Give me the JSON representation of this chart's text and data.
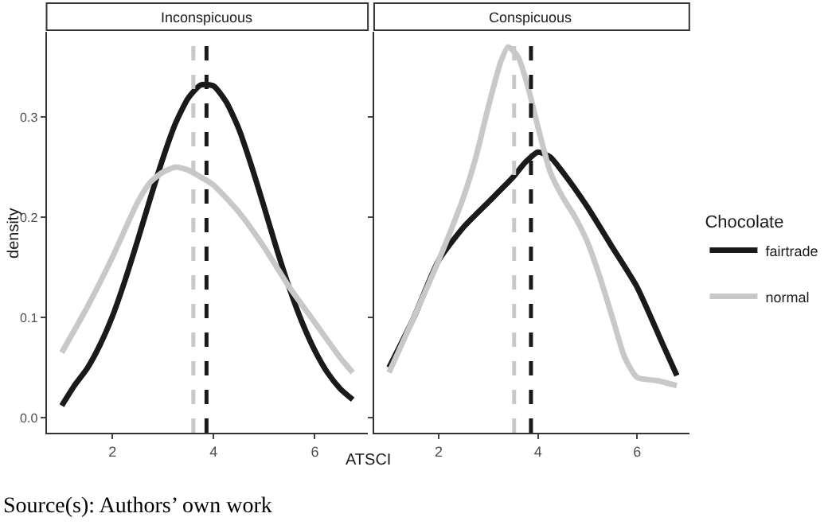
{
  "chart_data": [
    {
      "type": "line",
      "title": "Inconspicuous",
      "xlabel": "ATSCI",
      "ylabel": "density",
      "xlim": [
        0.7,
        7.05
      ],
      "ylim": [
        -0.015,
        0.385
      ],
      "xticks": [
        2,
        4,
        6
      ],
      "yticks": [
        {
          "value": 0,
          "label": "0.0"
        },
        0.1,
        0.2,
        0.3
      ],
      "line_style": "solid",
      "annotations": [
        "Source(s): Authors’ own work"
      ],
      "series": [
        {
          "color": "#1a1a1a",
          "x": [
            1.0,
            1.25,
            1.5,
            1.75,
            2.0,
            2.25,
            2.5,
            2.75,
            3.0,
            3.25,
            3.5,
            3.75,
            4.0,
            4.25,
            4.5,
            4.75,
            5.0,
            5.25,
            5.5,
            5.75,
            6.0,
            6.25,
            6.5,
            6.75
          ],
          "values": [
            0.012,
            0.032,
            0.049,
            0.072,
            0.101,
            0.137,
            0.177,
            0.219,
            0.259,
            0.294,
            0.319,
            0.332,
            0.331,
            0.315,
            0.288,
            0.251,
            0.21,
            0.168,
            0.129,
            0.095,
            0.067,
            0.045,
            0.029,
            0.018
          ]
        },
        {
          "color": "#c8c8c8",
          "x": [
            1.0,
            1.5,
            2.0,
            2.5,
            2.75,
            3.0,
            3.25,
            3.5,
            3.75,
            4.0,
            4.5,
            5.0,
            5.5,
            6.0,
            6.5,
            6.75
          ],
          "values": [
            0.065,
            0.11,
            0.16,
            0.215,
            0.235,
            0.245,
            0.25,
            0.247,
            0.24,
            0.232,
            0.205,
            0.17,
            0.13,
            0.095,
            0.06,
            0.045
          ]
        }
      ],
      "ref_lines": [
        {
          "axis": "x",
          "value": 3.6,
          "color": "#c8c8c8",
          "line_style": "dashed"
        },
        {
          "axis": "x",
          "value": 3.86,
          "color": "#1a1a1a",
          "line_style": "dashed"
        }
      ]
    },
    {
      "type": "line",
      "title": "Conspicuous",
      "xlim": [
        0.7,
        7.05
      ],
      "ylim": [
        -0.015,
        0.385
      ],
      "xticks": [
        2,
        4,
        6
      ],
      "yticks": [
        0,
        0.1,
        0.2,
        0.3
      ],
      "tick_labels": "x",
      "legend": "right",
      "legend_title": "Chocolate",
      "line_style": "solid",
      "series": [
        {
          "name": "fairtrade",
          "color": "#1a1a1a",
          "x": [
            1.0,
            1.5,
            2.0,
            2.5,
            3.0,
            3.5,
            3.75,
            4.0,
            4.25,
            4.5,
            5.0,
            5.5,
            6.0,
            6.5,
            6.8
          ],
          "values": [
            0.05,
            0.1,
            0.157,
            0.19,
            0.215,
            0.24,
            0.255,
            0.265,
            0.26,
            0.245,
            0.21,
            0.17,
            0.13,
            0.075,
            0.042
          ]
        },
        {
          "name": "normal",
          "color": "#c8c8c8",
          "x": [
            1.0,
            1.5,
            2.0,
            2.5,
            2.75,
            3.0,
            3.25,
            3.4,
            3.6,
            3.8,
            4.0,
            4.25,
            4.5,
            4.75,
            5.0,
            5.25,
            5.5,
            5.75,
            6.0,
            6.4,
            6.8
          ],
          "values": [
            0.045,
            0.1,
            0.157,
            0.22,
            0.26,
            0.31,
            0.355,
            0.37,
            0.36,
            0.33,
            0.29,
            0.245,
            0.22,
            0.2,
            0.175,
            0.14,
            0.1,
            0.06,
            0.04,
            0.037,
            0.032
          ]
        }
      ],
      "ref_lines": [
        {
          "axis": "x",
          "value": 3.52,
          "color": "#c8c8c8",
          "line_style": "dashed"
        },
        {
          "axis": "x",
          "value": 3.86,
          "color": "#1a1a1a",
          "line_style": "dashed"
        }
      ]
    }
  ]
}
